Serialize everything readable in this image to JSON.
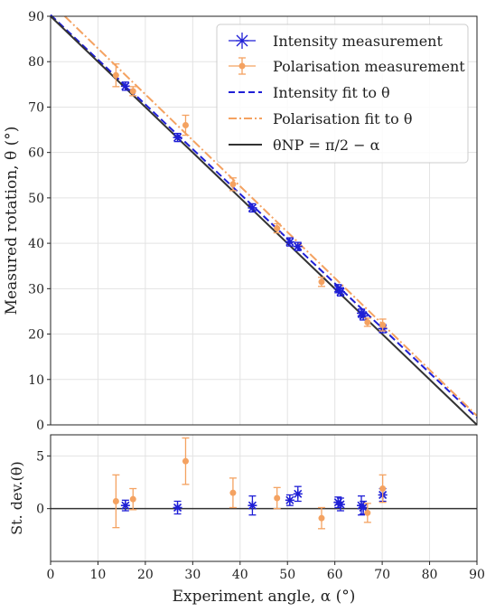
{
  "chart_data": [
    {
      "panel": "main",
      "type": "scatter",
      "xlabel": "Experiment angle, α (°)",
      "ylabel": "Measured rotation, θ (°)",
      "xlim": [
        0,
        90
      ],
      "ylim": [
        0,
        90
      ],
      "xticks": [
        0,
        10,
        20,
        30,
        40,
        50,
        60,
        70,
        80,
        90
      ],
      "yticks": [
        0,
        10,
        20,
        30,
        40,
        50,
        60,
        70,
        80,
        90
      ],
      "grid": true,
      "legend_position": "top-right",
      "legend": [
        {
          "key": "int",
          "label": "Intensity measurement"
        },
        {
          "key": "pol",
          "label": "Polarisation measurement"
        },
        {
          "key": "intfit",
          "label": "Intensity fit to θ"
        },
        {
          "key": "polfit",
          "label": "Polarisation fit to θ"
        },
        {
          "key": "np",
          "label": "θNP = π/2 − α"
        }
      ],
      "series": [
        {
          "key": "int",
          "color": "#1f1fd6",
          "marker": "star-errorbar",
          "points": [
            {
              "x": 15.8,
              "y": 74.6,
              "ex": 0.6,
              "ey": 0.9
            },
            {
              "x": 26.8,
              "y": 63.3,
              "ex": 0.6,
              "ey": 0.9
            },
            {
              "x": 42.6,
              "y": 47.8,
              "ex": 0.6,
              "ey": 0.9
            },
            {
              "x": 50.5,
              "y": 40.3,
              "ex": 0.6,
              "ey": 0.9
            },
            {
              "x": 52.2,
              "y": 39.3,
              "ex": 0.6,
              "ey": 0.9
            },
            {
              "x": 60.7,
              "y": 30.0,
              "ex": 0.6,
              "ey": 0.9
            },
            {
              "x": 61.2,
              "y": 29.3,
              "ex": 0.6,
              "ey": 0.9
            },
            {
              "x": 65.6,
              "y": 24.6,
              "ex": 0.6,
              "ey": 0.9
            },
            {
              "x": 66.0,
              "y": 24.0,
              "ex": 0.6,
              "ey": 0.9
            },
            {
              "x": 70.1,
              "y": 21.2,
              "ex": 0.6,
              "ey": 0.9
            }
          ]
        },
        {
          "key": "pol",
          "color": "#f4a261",
          "marker": "dot-errorbar",
          "points": [
            {
              "x": 13.8,
              "y": 77.0,
              "ey": 2.5
            },
            {
              "x": 17.4,
              "y": 73.5,
              "ey": 1.0
            },
            {
              "x": 28.5,
              "y": 66.0,
              "ey": 2.2
            },
            {
              "x": 38.5,
              "y": 53.0,
              "ey": 1.4
            },
            {
              "x": 47.8,
              "y": 43.3,
              "ey": 1.0
            },
            {
              "x": 57.2,
              "y": 31.5,
              "ey": 1.0
            },
            {
              "x": 66.9,
              "y": 22.6,
              "ey": 0.9
            },
            {
              "x": 70.1,
              "y": 22.0,
              "ey": 1.3
            }
          ]
        }
      ],
      "lines": [
        {
          "key": "intfit",
          "color": "#1f1fd6",
          "dash": "dashed",
          "x": [
            0,
            90
          ],
          "y": [
            90.3,
            1.6
          ]
        },
        {
          "key": "polfit",
          "color": "#f4a261",
          "dash": "dashdot",
          "x": [
            3,
            90
          ],
          "y": [
            90.0,
            2.0
          ]
        },
        {
          "key": "np",
          "color": "#333333",
          "dash": "solid",
          "x": [
            0,
            90
          ],
          "y": [
            90,
            0
          ]
        }
      ]
    },
    {
      "panel": "residual",
      "type": "scatter",
      "xlabel": "Experiment angle, α (°)",
      "ylabel": "St. dev.(θ)",
      "xlim": [
        0,
        90
      ],
      "ylim": [
        -5,
        7
      ],
      "xticks": [
        0,
        10,
        20,
        30,
        40,
        50,
        60,
        70,
        80,
        90
      ],
      "yticks": [
        0,
        5
      ],
      "grid": true,
      "zero_line": true,
      "series": [
        {
          "key": "int",
          "color": "#1f1fd6",
          "marker": "star-errorbar",
          "points": [
            {
              "x": 15.8,
              "y": 0.3,
              "ex": 0.6,
              "ey": 0.5
            },
            {
              "x": 26.8,
              "y": 0.1,
              "ex": 0.6,
              "ey": 0.6
            },
            {
              "x": 42.6,
              "y": 0.3,
              "ex": 0.6,
              "ey": 0.9
            },
            {
              "x": 50.5,
              "y": 0.8,
              "ex": 0.6,
              "ey": 0.5
            },
            {
              "x": 52.2,
              "y": 1.4,
              "ex": 0.6,
              "ey": 0.7
            },
            {
              "x": 60.7,
              "y": 0.6,
              "ex": 0.6,
              "ey": 0.5
            },
            {
              "x": 61.2,
              "y": 0.4,
              "ex": 0.6,
              "ey": 0.6
            },
            {
              "x": 65.6,
              "y": 0.3,
              "ex": 0.6,
              "ey": 0.9
            },
            {
              "x": 66.0,
              "y": 0.1,
              "ex": 0.6,
              "ey": 0.6
            },
            {
              "x": 70.1,
              "y": 1.3,
              "ex": 0.6,
              "ey": 0.6
            }
          ]
        },
        {
          "key": "pol",
          "color": "#f4a261",
          "marker": "dot-errorbar",
          "points": [
            {
              "x": 13.8,
              "y": 0.7,
              "ey": 2.5
            },
            {
              "x": 17.4,
              "y": 0.9,
              "ey": 1.0
            },
            {
              "x": 28.5,
              "y": 4.5,
              "ey": 2.2
            },
            {
              "x": 38.5,
              "y": 1.5,
              "ey": 1.4
            },
            {
              "x": 47.8,
              "y": 1.0,
              "ey": 1.0
            },
            {
              "x": 57.2,
              "y": -0.9,
              "ey": 1.0
            },
            {
              "x": 66.9,
              "y": -0.4,
              "ey": 0.9
            },
            {
              "x": 70.1,
              "y": 1.9,
              "ey": 1.3
            }
          ]
        }
      ]
    }
  ]
}
